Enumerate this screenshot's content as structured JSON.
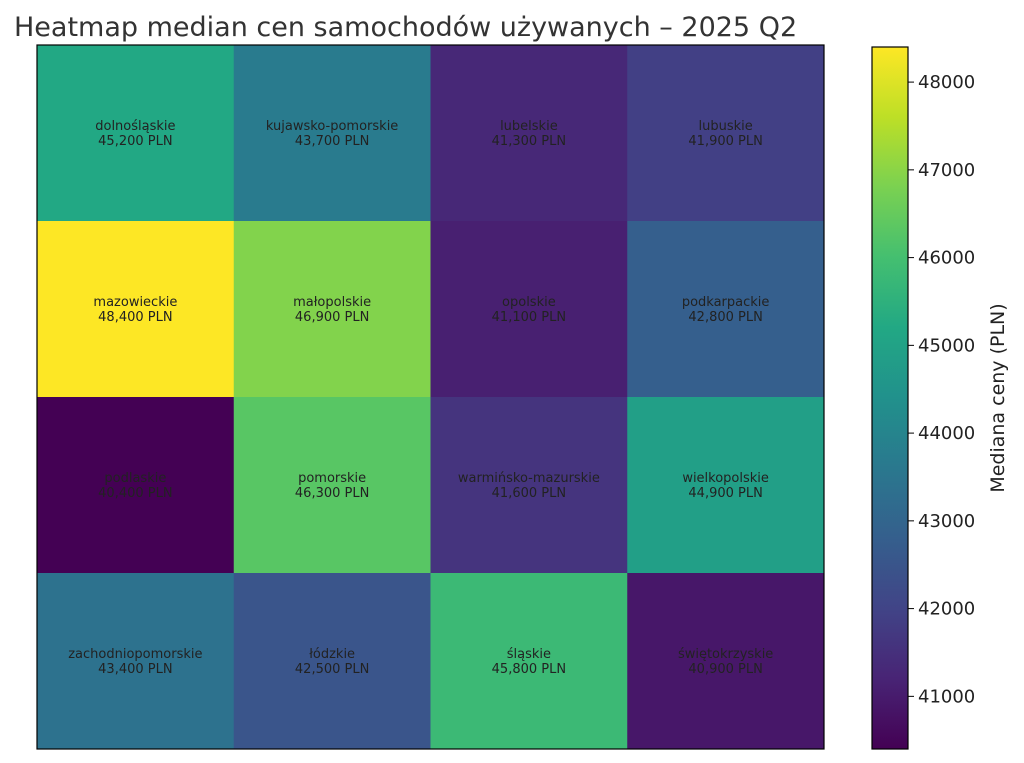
{
  "chart_data": {
    "type": "heatmap",
    "title": "Heatmap median cen samochodów używanych – 2025 Q2",
    "rows": 4,
    "cols": 4,
    "unit": "PLN",
    "cells": [
      {
        "region": "dolnośląskie",
        "value": 45200,
        "label": "45,200 PLN"
      },
      {
        "region": "kujawsko-pomorskie",
        "value": 43700,
        "label": "43,700 PLN"
      },
      {
        "region": "lubelskie",
        "value": 41300,
        "label": "41,300 PLN"
      },
      {
        "region": "lubuskie",
        "value": 41900,
        "label": "41,900 PLN"
      },
      {
        "region": "mazowieckie",
        "value": 48400,
        "label": "48,400 PLN"
      },
      {
        "region": "małopolskie",
        "value": 46900,
        "label": "46,900 PLN"
      },
      {
        "region": "opolskie",
        "value": 41100,
        "label": "41,100 PLN"
      },
      {
        "region": "podkarpackie",
        "value": 42800,
        "label": "42,800 PLN"
      },
      {
        "region": "podlaskie",
        "value": 40400,
        "label": "40,400 PLN"
      },
      {
        "region": "pomorskie",
        "value": 46300,
        "label": "46,300 PLN"
      },
      {
        "region": "warmińsko-mazurskie",
        "value": 41600,
        "label": "41,600 PLN"
      },
      {
        "region": "wielkopolskie",
        "value": 44900,
        "label": "44,900 PLN"
      },
      {
        "region": "zachodniopomorskie",
        "value": 43400,
        "label": "43,400 PLN"
      },
      {
        "region": "łódzkie",
        "value": 42500,
        "label": "42,500 PLN"
      },
      {
        "region": "śląskie",
        "value": 45800,
        "label": "45,800 PLN"
      },
      {
        "region": "świętokrzyskie",
        "value": 40900,
        "label": "40,900 PLN"
      }
    ],
    "colorbar": {
      "label": "Mediana ceny (PLN)",
      "min": 40400,
      "max": 48400,
      "ticks": [
        41000,
        42000,
        43000,
        44000,
        45000,
        46000,
        47000,
        48000
      ],
      "colormap": "viridis"
    }
  }
}
